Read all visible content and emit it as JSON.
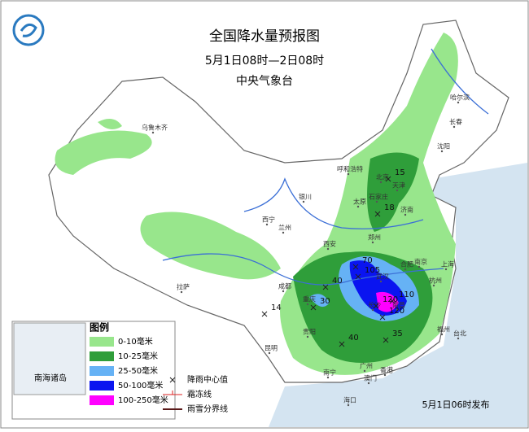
{
  "header": {
    "title": "全国降水量预报图",
    "period": "5月1日08时—2日08时",
    "issuer": "中央气象台"
  },
  "legend": {
    "title": "图例",
    "items": [
      {
        "label": "0-10毫米",
        "color": "#98e68c"
      },
      {
        "label": "10-25毫米",
        "color": "#2f9e3a"
      },
      {
        "label": "25-50毫米",
        "color": "#66b2f5"
      },
      {
        "label": "50-100毫米",
        "color": "#0a14f0"
      },
      {
        "label": "100-250毫米",
        "color": "#ff00ff"
      }
    ],
    "symbols": [
      "降雨中心值",
      "霜冻线",
      "雨雪分界线"
    ]
  },
  "inset": "南海诸岛",
  "footer": "5月1日06时发布",
  "cities": [
    "乌鲁木齐",
    "哈尔滨",
    "长春",
    "沈阳",
    "呼和浩特",
    "北京",
    "天津",
    "石家庄",
    "太原",
    "济南",
    "银川",
    "西宁",
    "兰州",
    "郑州",
    "西安",
    "合肥",
    "南京",
    "上海",
    "杭州",
    "武汉",
    "成都",
    "重庆",
    "长沙",
    "南昌",
    "拉萨",
    "贵阳",
    "福州",
    "台北",
    "昆明",
    "南宁",
    "广州",
    "香港",
    "澳门",
    "海口"
  ],
  "rain_centers": [
    15,
    18,
    70,
    105,
    110,
    120,
    120,
    40,
    30,
    14,
    40,
    35
  ]
}
